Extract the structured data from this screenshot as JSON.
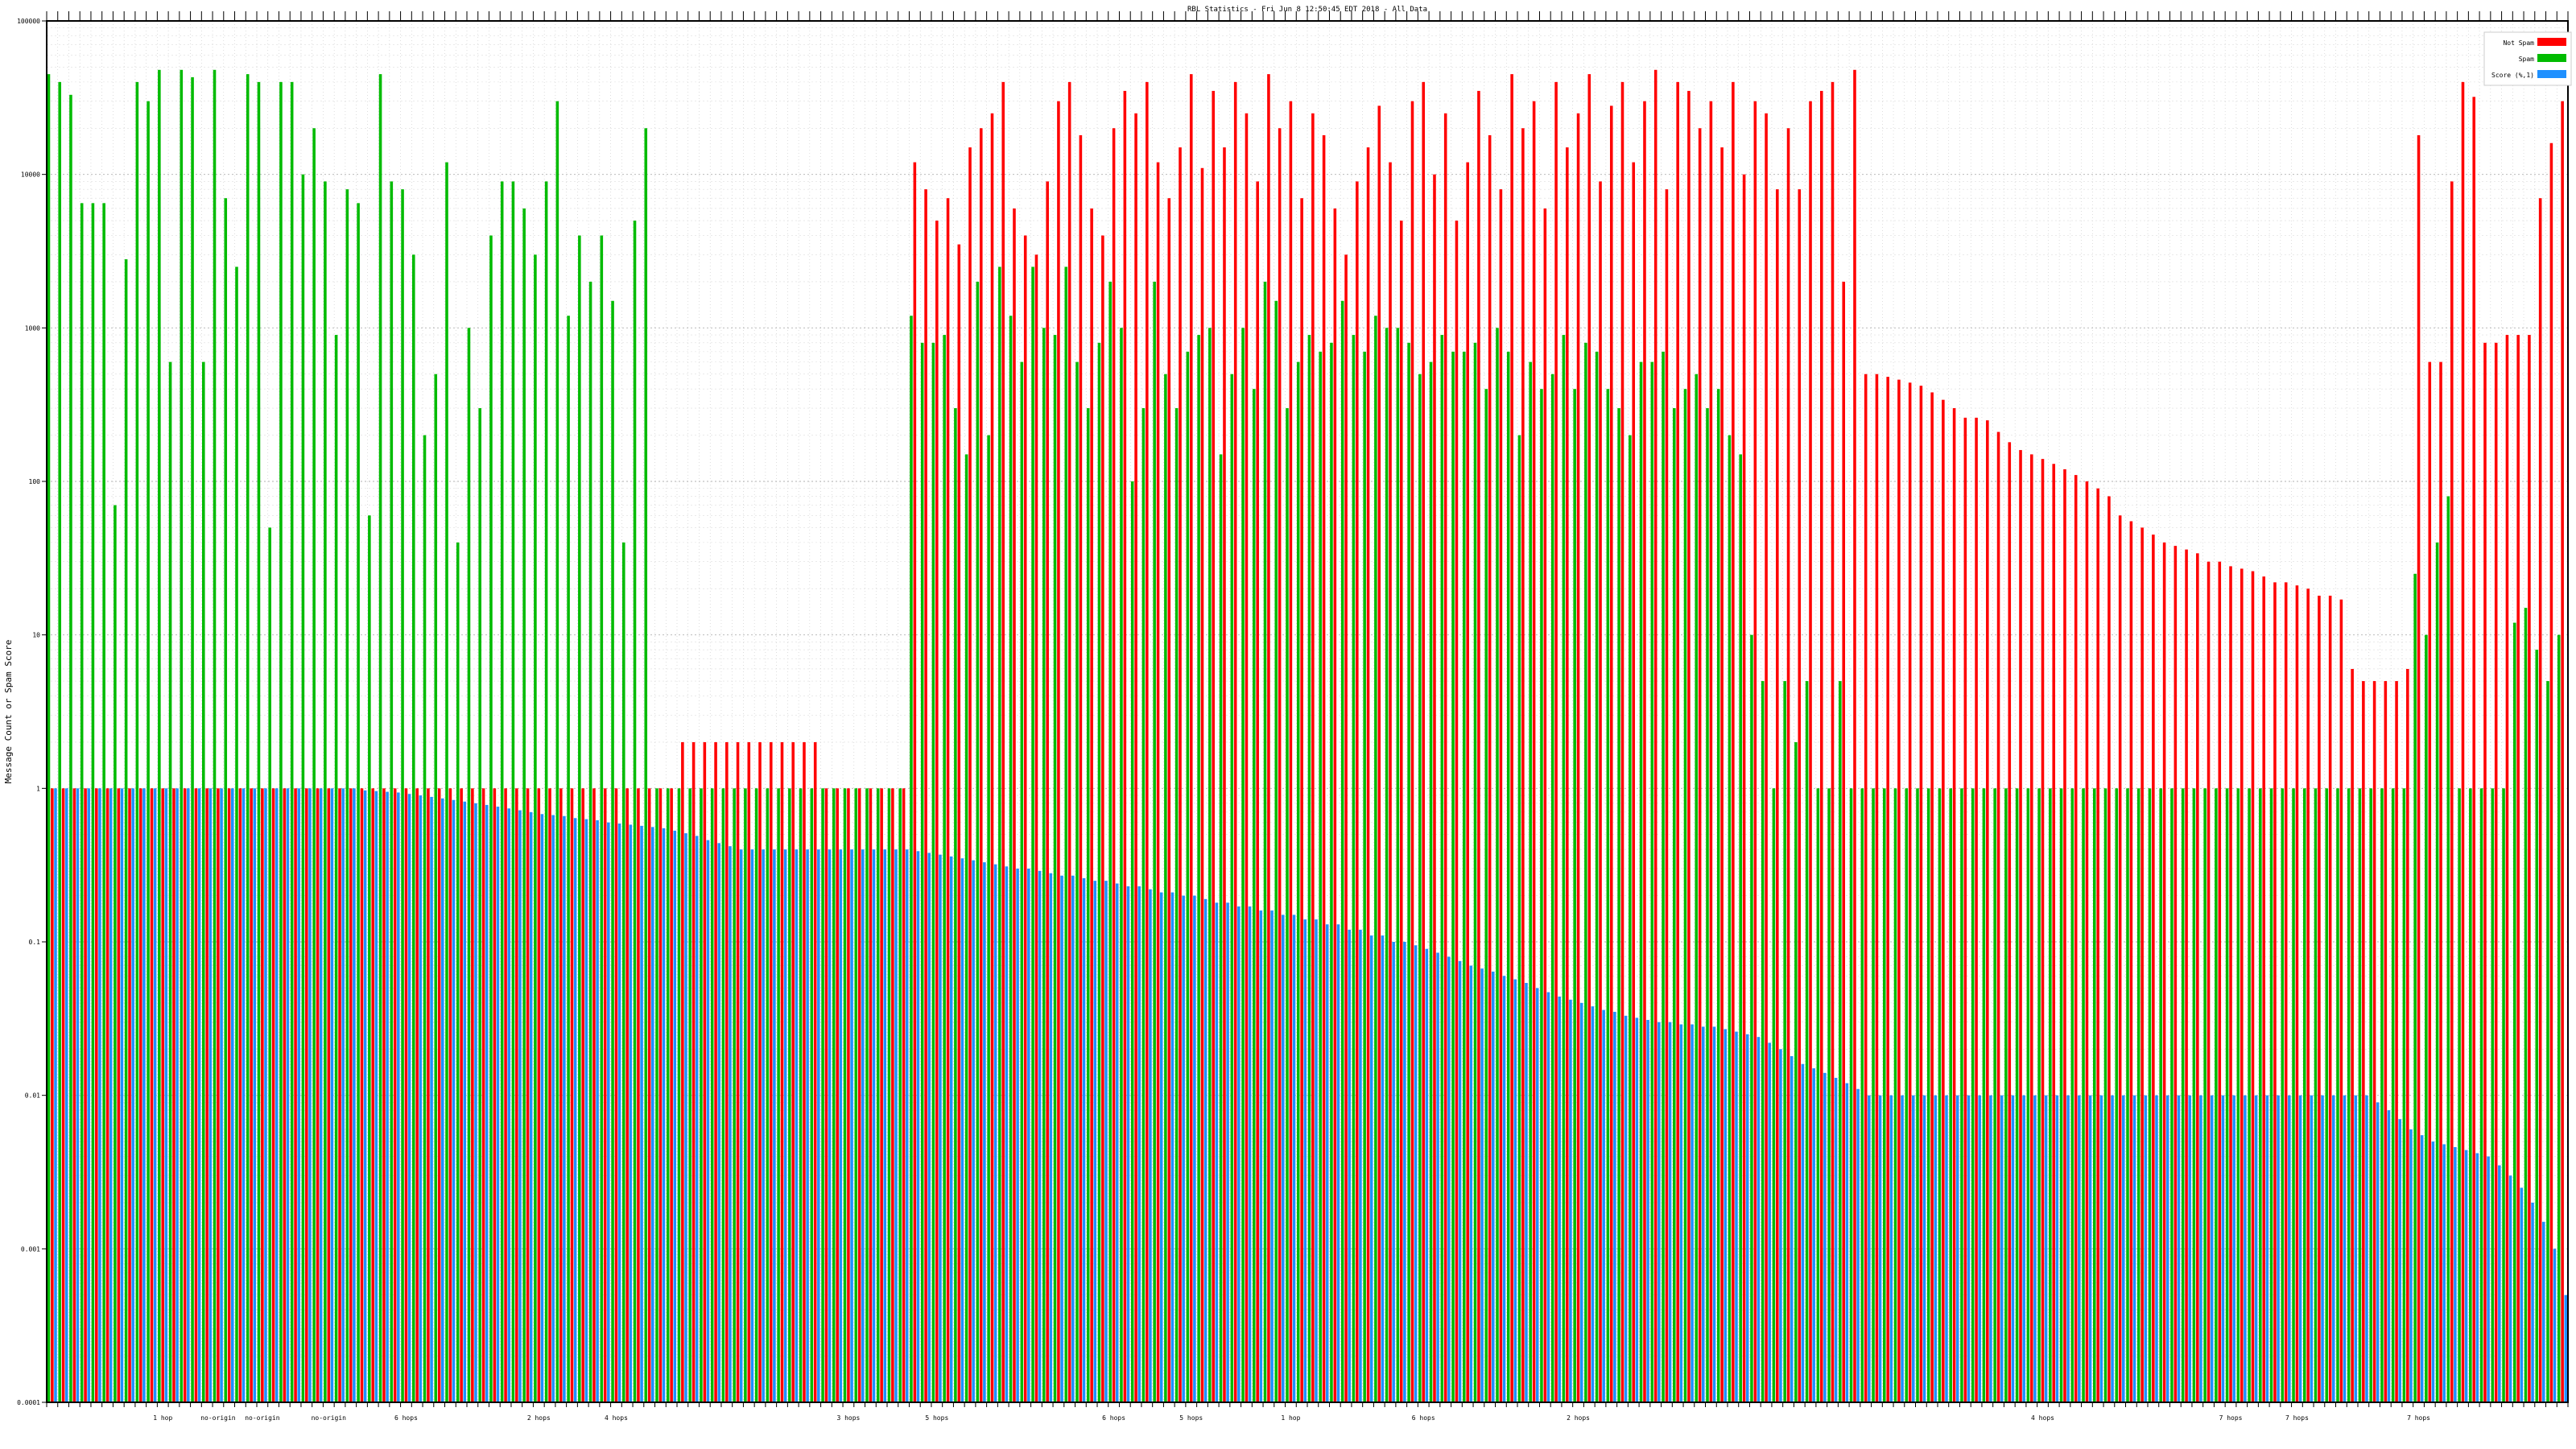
{
  "chart_data": {
    "type": "bar",
    "title": "RBL Statistics - Fri Jun  8 12:50:45 EDT 2018 - All Data",
    "xlabel": "",
    "ylabel": "Message Count or Spam Score",
    "y_scale": "log",
    "ylim": [
      0.0001,
      100000
    ],
    "y_tick_labels": [
      "0.0001",
      "0.001",
      "0.01",
      "0.1",
      "1",
      "10",
      "100",
      "1000",
      "10000",
      "100000"
    ],
    "grid": true,
    "legend_position": "top-right",
    "category_count": 228,
    "series": [
      {
        "name": "Not Spam",
        "color": "#ff0000",
        "segments": [
          {
            "from": 0,
            "to": 56,
            "values": [
              1,
              1,
              1,
              1,
              1,
              1,
              1,
              1,
              1,
              1,
              1,
              1,
              1,
              1,
              1,
              1,
              1,
              1,
              1,
              1,
              1,
              1,
              1,
              1,
              1,
              1,
              1,
              1,
              1,
              1,
              1,
              1,
              1,
              1,
              1,
              1,
              1,
              1,
              1,
              1,
              1,
              1,
              1,
              1,
              1,
              1,
              1,
              1,
              1,
              1,
              1,
              1,
              1,
              1,
              1,
              1
            ]
          },
          {
            "from": 56,
            "to": 70,
            "values": [
              1,
              2,
              2,
              2,
              2,
              2,
              2,
              2,
              2,
              2,
              2,
              2,
              2,
              2
            ]
          },
          {
            "from": 70,
            "to": 78,
            "values": [
              1,
              1,
              1,
              1,
              1,
              1,
              1,
              1
            ]
          },
          {
            "from": 78,
            "to": 164,
            "values": [
              12000,
              8000,
              5000,
              7000,
              3500,
              15000,
              20000,
              25000,
              40000,
              6000,
              4000,
              3000,
              9000,
              30000,
              40000,
              18000,
              6000,
              4000,
              20000,
              35000,
              25000,
              40000,
              12000,
              7000,
              15000,
              45000,
              11000,
              35000,
              15000,
              40000,
              25000,
              9000,
              45000,
              20000,
              30000,
              7000,
              25000,
              18000,
              6000,
              3000,
              9000,
              15000,
              28000,
              12000,
              5000,
              30000,
              40000,
              10000,
              25000,
              5000,
              12000,
              35000,
              18000,
              8000,
              45000,
              20000,
              30000,
              6000,
              40000,
              15000,
              25000,
              45000,
              9000,
              28000,
              40000,
              12000,
              30000,
              48000,
              8000,
              40000,
              35000,
              20000,
              30000,
              15000,
              40000,
              10000,
              30000,
              25000,
              8000,
              20000,
              8000,
              30000,
              35000,
              40000,
              2000,
              48000
            ]
          },
          {
            "from": 164,
            "to": 208,
            "values": [
              500,
              500,
              480,
              460,
              440,
              420,
              380,
              340,
              300,
              260,
              260,
              250,
              210,
              180,
              160,
              150,
              140,
              130,
              120,
              110,
              100,
              90,
              80,
              60,
              55,
              50,
              45,
              40,
              38,
              36,
              34,
              30,
              30,
              28,
              27,
              26,
              24,
              22,
              22,
              21,
              20,
              18,
              18,
              17
            ]
          },
          {
            "from": 208,
            "to": 214,
            "values": [
              6,
              5,
              5,
              5,
              5,
              6
            ]
          },
          {
            "from": 214,
            "to": 228,
            "values": [
              18000,
              600,
              600,
              9000,
              40000,
              32000,
              800,
              800,
              900,
              900,
              900,
              7000,
              16000,
              30000
            ]
          }
        ]
      },
      {
        "name": "Spam",
        "color": "#00bb00",
        "segments": [
          {
            "from": 0,
            "to": 56,
            "values": [
              45000,
              40000,
              33000,
              6500,
              6500,
              6500,
              70,
              2800,
              40000,
              30000,
              48000,
              600,
              48000,
              43000,
              600,
              48000,
              7000,
              2500,
              45000,
              40000,
              50,
              40000,
              40000,
              10000,
              20000,
              9000,
              900,
              8000,
              6500,
              60,
              45000,
              9000,
              8000,
              3000,
              200,
              500,
              12000,
              40,
              1000,
              300,
              4000,
              9000,
              9000,
              6000,
              3000,
              9000,
              30000,
              1200,
              4000,
              2000,
              4000,
              1500,
              40,
              5000,
              20000,
              1
            ]
          },
          {
            "from": 56,
            "to": 78,
            "values": [
              1,
              1,
              1,
              1,
              1,
              1,
              1,
              1,
              1,
              1,
              1,
              1,
              1,
              1,
              1,
              1,
              1,
              1,
              1,
              1,
              1,
              1
            ]
          },
          {
            "from": 78,
            "to": 164,
            "values": [
              1200,
              800,
              800,
              900,
              300,
              150,
              2000,
              200,
              2500,
              1200,
              600,
              2500,
              1000,
              900,
              2500,
              600,
              300,
              800,
              2000,
              1000,
              100,
              300,
              2000,
              500,
              300,
              700,
              900,
              1000,
              150,
              500,
              1000,
              400,
              2000,
              1500,
              300,
              600,
              900,
              700,
              800,
              1500,
              900,
              700,
              1200,
              1000,
              1000,
              800,
              500,
              600,
              900,
              700,
              700,
              800,
              400,
              1000,
              700,
              200,
              600,
              400,
              500,
              900,
              400,
              800,
              700,
              400,
              300,
              200,
              600,
              600,
              700,
              300,
              400,
              500,
              300,
              400,
              200,
              150,
              10,
              5,
              1,
              5,
              2,
              5,
              1,
              1,
              5,
              1
            ]
          },
          {
            "from": 164,
            "to": 228,
            "values": [
              1,
              1,
              1,
              1,
              1,
              1,
              1,
              1,
              1,
              1,
              1,
              1,
              1,
              1,
              1,
              1,
              1,
              1,
              1,
              1,
              1,
              1,
              1,
              1,
              1,
              1,
              1,
              1,
              1,
              1,
              1,
              1,
              1,
              1,
              1,
              1,
              1,
              1,
              1,
              1,
              1,
              1,
              1,
              1,
              1,
              1,
              1,
              1,
              1,
              1,
              25,
              10,
              40,
              80,
              1,
              1,
              1,
              1,
              1,
              12,
              15,
              8,
              5,
              10
            ]
          }
        ]
      },
      {
        "name": "Score (%,1)",
        "color": "#1e90ff",
        "segments": [
          {
            "from": 0,
            "to": 28,
            "values": [
              1,
              1,
              1,
              1,
              1,
              1,
              1,
              1,
              1,
              1,
              1,
              1,
              1,
              1,
              1,
              1,
              1,
              1,
              1,
              1,
              1,
              1,
              1,
              1,
              1,
              1,
              1,
              1
            ]
          },
          {
            "from": 28,
            "to": 62,
            "values": [
              0.97,
              0.96,
              0.95,
              0.94,
              0.92,
              0.9,
              0.88,
              0.86,
              0.84,
              0.82,
              0.8,
              0.78,
              0.76,
              0.74,
              0.72,
              0.7,
              0.68,
              0.67,
              0.66,
              0.64,
              0.63,
              0.62,
              0.6,
              0.59,
              0.58,
              0.57,
              0.56,
              0.55,
              0.53,
              0.51,
              0.49,
              0.46,
              0.44,
              0.42
            ]
          },
          {
            "from": 62,
            "to": 78,
            "values": [
              0.4,
              0.4,
              0.4,
              0.4,
              0.4,
              0.4,
              0.4,
              0.4,
              0.4,
              0.4,
              0.4,
              0.4,
              0.4,
              0.4,
              0.4,
              0.4
            ]
          },
          {
            "from": 78,
            "to": 164,
            "values": [
              0.39,
              0.38,
              0.37,
              0.36,
              0.35,
              0.34,
              0.33,
              0.32,
              0.31,
              0.3,
              0.3,
              0.29,
              0.28,
              0.27,
              0.27,
              0.26,
              0.25,
              0.25,
              0.24,
              0.23,
              0.23,
              0.22,
              0.21,
              0.21,
              0.2,
              0.2,
              0.19,
              0.18,
              0.18,
              0.17,
              0.17,
              0.16,
              0.16,
              0.15,
              0.15,
              0.14,
              0.14,
              0.13,
              0.13,
              0.12,
              0.12,
              0.11,
              0.11,
              0.1,
              0.1,
              0.095,
              0.09,
              0.085,
              0.08,
              0.075,
              0.07,
              0.067,
              0.064,
              0.06,
              0.057,
              0.054,
              0.05,
              0.047,
              0.044,
              0.042,
              0.04,
              0.038,
              0.036,
              0.035,
              0.033,
              0.032,
              0.031,
              0.03,
              0.03,
              0.029,
              0.029,
              0.028,
              0.028,
              0.027,
              0.026,
              0.025,
              0.024,
              0.022,
              0.02,
              0.018,
              0.016,
              0.015,
              0.014,
              0.013,
              0.012,
              0.011
            ]
          },
          {
            "from": 164,
            "to": 210,
            "values": [
              0.01,
              0.01,
              0.01,
              0.01,
              0.01,
              0.01,
              0.01,
              0.01,
              0.01,
              0.01,
              0.01,
              0.01,
              0.01,
              0.01,
              0.01,
              0.01,
              0.01,
              0.01,
              0.01,
              0.01,
              0.01,
              0.01,
              0.01,
              0.01,
              0.01,
              0.01,
              0.01,
              0.01,
              0.01,
              0.01,
              0.01,
              0.01,
              0.01,
              0.01,
              0.01,
              0.01,
              0.01,
              0.01,
              0.01,
              0.01,
              0.01,
              0.01,
              0.01,
              0.01,
              0.01,
              0.01
            ]
          },
          {
            "from": 210,
            "to": 228,
            "values": [
              0.009,
              0.008,
              0.007,
              0.006,
              0.0055,
              0.005,
              0.0048,
              0.0046,
              0.0044,
              0.0042,
              0.004,
              0.0035,
              0.003,
              0.0025,
              0.002,
              0.0015,
              0.001,
              0.0005
            ]
          }
        ]
      }
    ],
    "x_annotations": [
      {
        "index": 10,
        "text": "1 hop"
      },
      {
        "index": 15,
        "text": "no-origin"
      },
      {
        "index": 19,
        "text": "no-origin"
      },
      {
        "index": 25,
        "text": "no-origin"
      },
      {
        "index": 32,
        "text": "6 hops"
      },
      {
        "index": 44,
        "text": "2 hops"
      },
      {
        "index": 51,
        "text": "4 hops"
      },
      {
        "index": 72,
        "text": "3 hops"
      },
      {
        "index": 80,
        "text": "5 hops"
      },
      {
        "index": 96,
        "text": "6 hops"
      },
      {
        "index": 103,
        "text": "5 hops"
      },
      {
        "index": 112,
        "text": "1 hop"
      },
      {
        "index": 124,
        "text": "6 hops"
      },
      {
        "index": 138,
        "text": "2 hops"
      },
      {
        "index": 180,
        "text": "4 hops"
      },
      {
        "index": 197,
        "text": "7 hops"
      },
      {
        "index": 203,
        "text": "7 hops"
      },
      {
        "index": 214,
        "text": "7 hops"
      }
    ]
  }
}
